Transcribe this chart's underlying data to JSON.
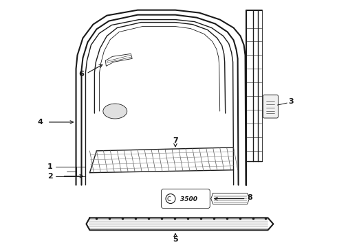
{
  "bg_color": "#ffffff",
  "line_color": "#1a1a1a",
  "fig_width": 4.9,
  "fig_height": 3.6,
  "dpi": 100,
  "label_fontsize": 8
}
